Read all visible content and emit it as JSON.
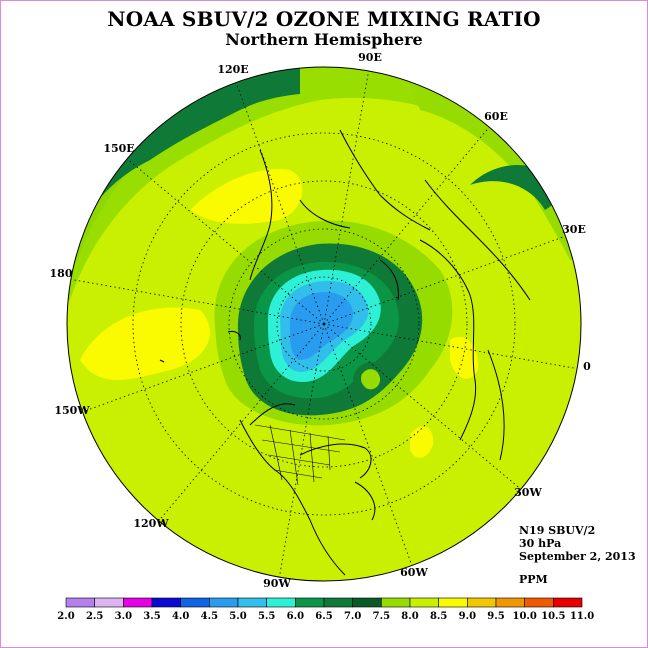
{
  "title": "NOAA SBUV/2 OZONE MIXING RATIO",
  "subtitle": "Northern Hemisphere",
  "longitude_labels": [
    "90E",
    "60E",
    "30E",
    "0",
    "30W",
    "60W",
    "90W",
    "120W",
    "150W",
    "180",
    "150E",
    "120E"
  ],
  "info": {
    "instrument": "N19 SBUV/2",
    "level": "30 hPa",
    "date": "September 2, 2013",
    "units": "PPM"
  },
  "colorbar": {
    "ticks": [
      "2.0",
      "2.5",
      "3.0",
      "3.5",
      "4.0",
      "4.5",
      "5.0",
      "5.5",
      "6.0",
      "6.5",
      "7.0",
      "7.5",
      "8.0",
      "8.5",
      "9.0",
      "9.5",
      "10.0",
      "10.5",
      "11.0"
    ],
    "colors": [
      "#b580ee",
      "#dcb4f0",
      "#e600e6",
      "#0a0ad2",
      "#0f64e6",
      "#2a9cf0",
      "#32beeb",
      "#2df0d7",
      "#0a9646",
      "#0f7a37",
      "#0a5a28",
      "#96dc00",
      "#c8f000",
      "#fafa00",
      "#f0c800",
      "#f09600",
      "#f05a00",
      "#e60000",
      "#8c5032"
    ]
  },
  "legend_colors": {
    "background_field": "#c8f000",
    "high_band": "#fafa00",
    "mid_band": "#96dc00",
    "dark_band": "#0f7a37"
  }
}
